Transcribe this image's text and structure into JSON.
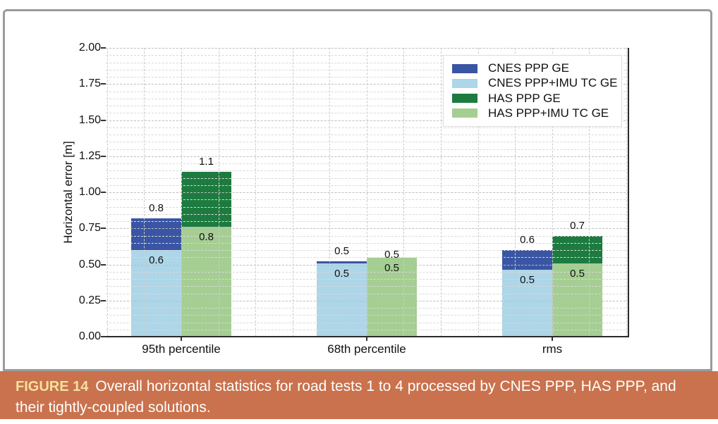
{
  "figure": {
    "caption_label": "FIGURE 14",
    "caption_text": "Overall horizontal statistics for road tests 1 to 4 processed by CNES PPP, HAS PPP, and their tightly-coupled solutions.",
    "caption_bg": "#C9724D",
    "caption_label_color": "#F4E1A0",
    "panel_border_color": "#9B9B9B"
  },
  "chart_data": {
    "type": "bar",
    "title": "",
    "xlabel": "",
    "ylabel": "Horizontal error [m]",
    "ylim": [
      0,
      2.0
    ],
    "yticks": [
      "0.00",
      "0.25",
      "0.50",
      "0.75",
      "1.00",
      "1.25",
      "1.50",
      "1.75",
      "2.00"
    ],
    "minor_grid_step": 0.05,
    "grid_style": "dashed",
    "legend_position": "upper right",
    "categories": [
      "95th percentile",
      "68th percentile",
      "rms"
    ],
    "series": [
      {
        "name": "CNES PPP GE",
        "color": "#3A55A3",
        "slot": "left",
        "layer": "back",
        "values": [
          0.8,
          0.5,
          0.6
        ],
        "bar_tops_m": [
          0.82,
          0.52,
          0.6
        ]
      },
      {
        "name": "CNES PPP+IMU TC GE",
        "color": "#ADD6E8",
        "slot": "left",
        "layer": "front",
        "values": [
          0.6,
          0.5,
          0.5
        ],
        "bar_tops_m": [
          0.6,
          0.505,
          0.465
        ]
      },
      {
        "name": "HAS PPP GE",
        "color": "#1D7B40",
        "slot": "right",
        "layer": "back",
        "values": [
          1.1,
          0.5,
          0.7
        ],
        "bar_tops_m": [
          1.14,
          0.5,
          0.7
        ]
      },
      {
        "name": "HAS PPP+IMU TC GE",
        "color": "#A5CE92",
        "slot": "right",
        "layer": "front",
        "values": [
          0.8,
          0.5,
          0.5
        ],
        "bar_tops_m": [
          0.76,
          0.545,
          0.505
        ]
      }
    ]
  }
}
